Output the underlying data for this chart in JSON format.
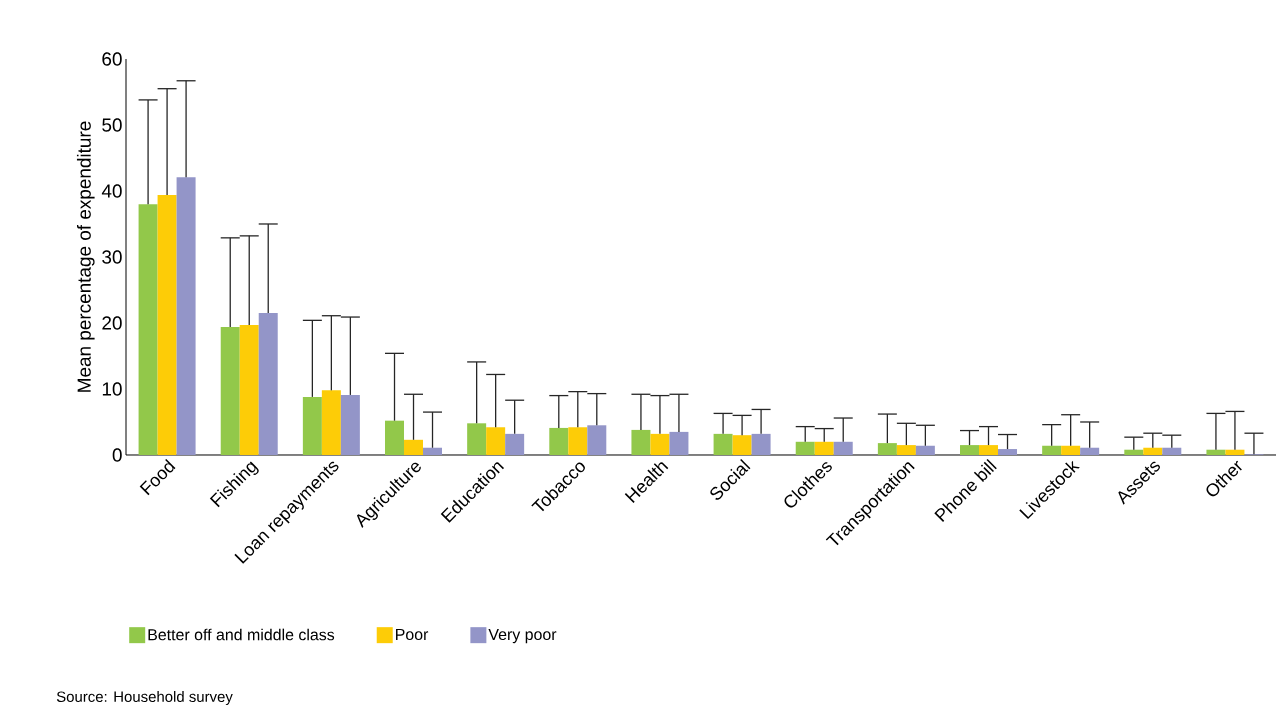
{
  "chart_data": {
    "type": "bar",
    "ylabel": "Mean percentage of expenditure",
    "categories": [
      "Food",
      "Fishing",
      "Loan repayments",
      "Agriculture",
      "Education",
      "Tobacco",
      "Health",
      "Social",
      "Clothes",
      "Transportation",
      "Phone bill",
      "Livestock",
      "Assets",
      "Other"
    ],
    "series": [
      {
        "name": "Better off and middle class",
        "color": "#92c84a",
        "values": [
          38.0,
          19.4,
          8.8,
          5.2,
          4.8,
          4.1,
          3.8,
          3.2,
          2.0,
          1.8,
          1.5,
          1.4,
          0.8,
          0.8
        ],
        "errors": [
          [
            38.0,
            53.8
          ],
          [
            19.4,
            32.9
          ],
          [
            8.8,
            20.4
          ],
          [
            5.2,
            15.4
          ],
          [
            4.8,
            14.1
          ],
          [
            4.1,
            9.0
          ],
          [
            3.8,
            9.2
          ],
          [
            3.2,
            6.3
          ],
          [
            2.0,
            4.3
          ],
          [
            1.8,
            6.2
          ],
          [
            1.5,
            3.7
          ],
          [
            1.4,
            4.6
          ],
          [
            0.8,
            2.7
          ],
          [
            0.8,
            6.3
          ]
        ]
      },
      {
        "name": "Poor",
        "color": "#fdcc07",
        "values": [
          39.4,
          19.7,
          9.8,
          2.3,
          4.2,
          4.2,
          3.2,
          3.0,
          2.0,
          1.5,
          1.5,
          1.4,
          1.1,
          0.8
        ],
        "errors": [
          [
            39.4,
            55.5
          ],
          [
            19.7,
            33.2
          ],
          [
            9.8,
            21.1
          ],
          [
            2.3,
            9.2
          ],
          [
            4.2,
            12.2
          ],
          [
            4.2,
            9.6
          ],
          [
            3.2,
            9.0
          ],
          [
            3.0,
            6.0
          ],
          [
            2.0,
            4.0
          ],
          [
            1.5,
            4.8
          ],
          [
            1.5,
            4.3
          ],
          [
            1.4,
            6.1
          ],
          [
            1.1,
            3.3
          ],
          [
            0.8,
            6.6
          ]
        ]
      },
      {
        "name": "Very poor",
        "color": "#9395c8",
        "values": [
          42.1,
          21.5,
          9.1,
          1.1,
          3.2,
          4.5,
          3.5,
          3.2,
          2.0,
          1.4,
          0.9,
          1.1,
          1.1,
          0.1
        ],
        "errors": [
          [
            42.1,
            56.7
          ],
          [
            21.5,
            35.0
          ],
          [
            9.1,
            20.9
          ],
          [
            1.1,
            6.5
          ],
          [
            3.2,
            8.3
          ],
          [
            4.5,
            9.3
          ],
          [
            3.5,
            9.2
          ],
          [
            3.2,
            6.9
          ],
          [
            2.0,
            5.6
          ],
          [
            1.4,
            4.5
          ],
          [
            0.9,
            3.1
          ],
          [
            1.1,
            5.0
          ],
          [
            1.1,
            3.0
          ],
          [
            0.1,
            3.3
          ]
        ]
      }
    ],
    "ylim": [
      0,
      60
    ],
    "yticks": [
      0,
      10,
      20,
      30,
      40,
      50,
      60
    ],
    "legend": "bottom",
    "grid": false,
    "annotations": [
      "Source: Household survey"
    ]
  }
}
